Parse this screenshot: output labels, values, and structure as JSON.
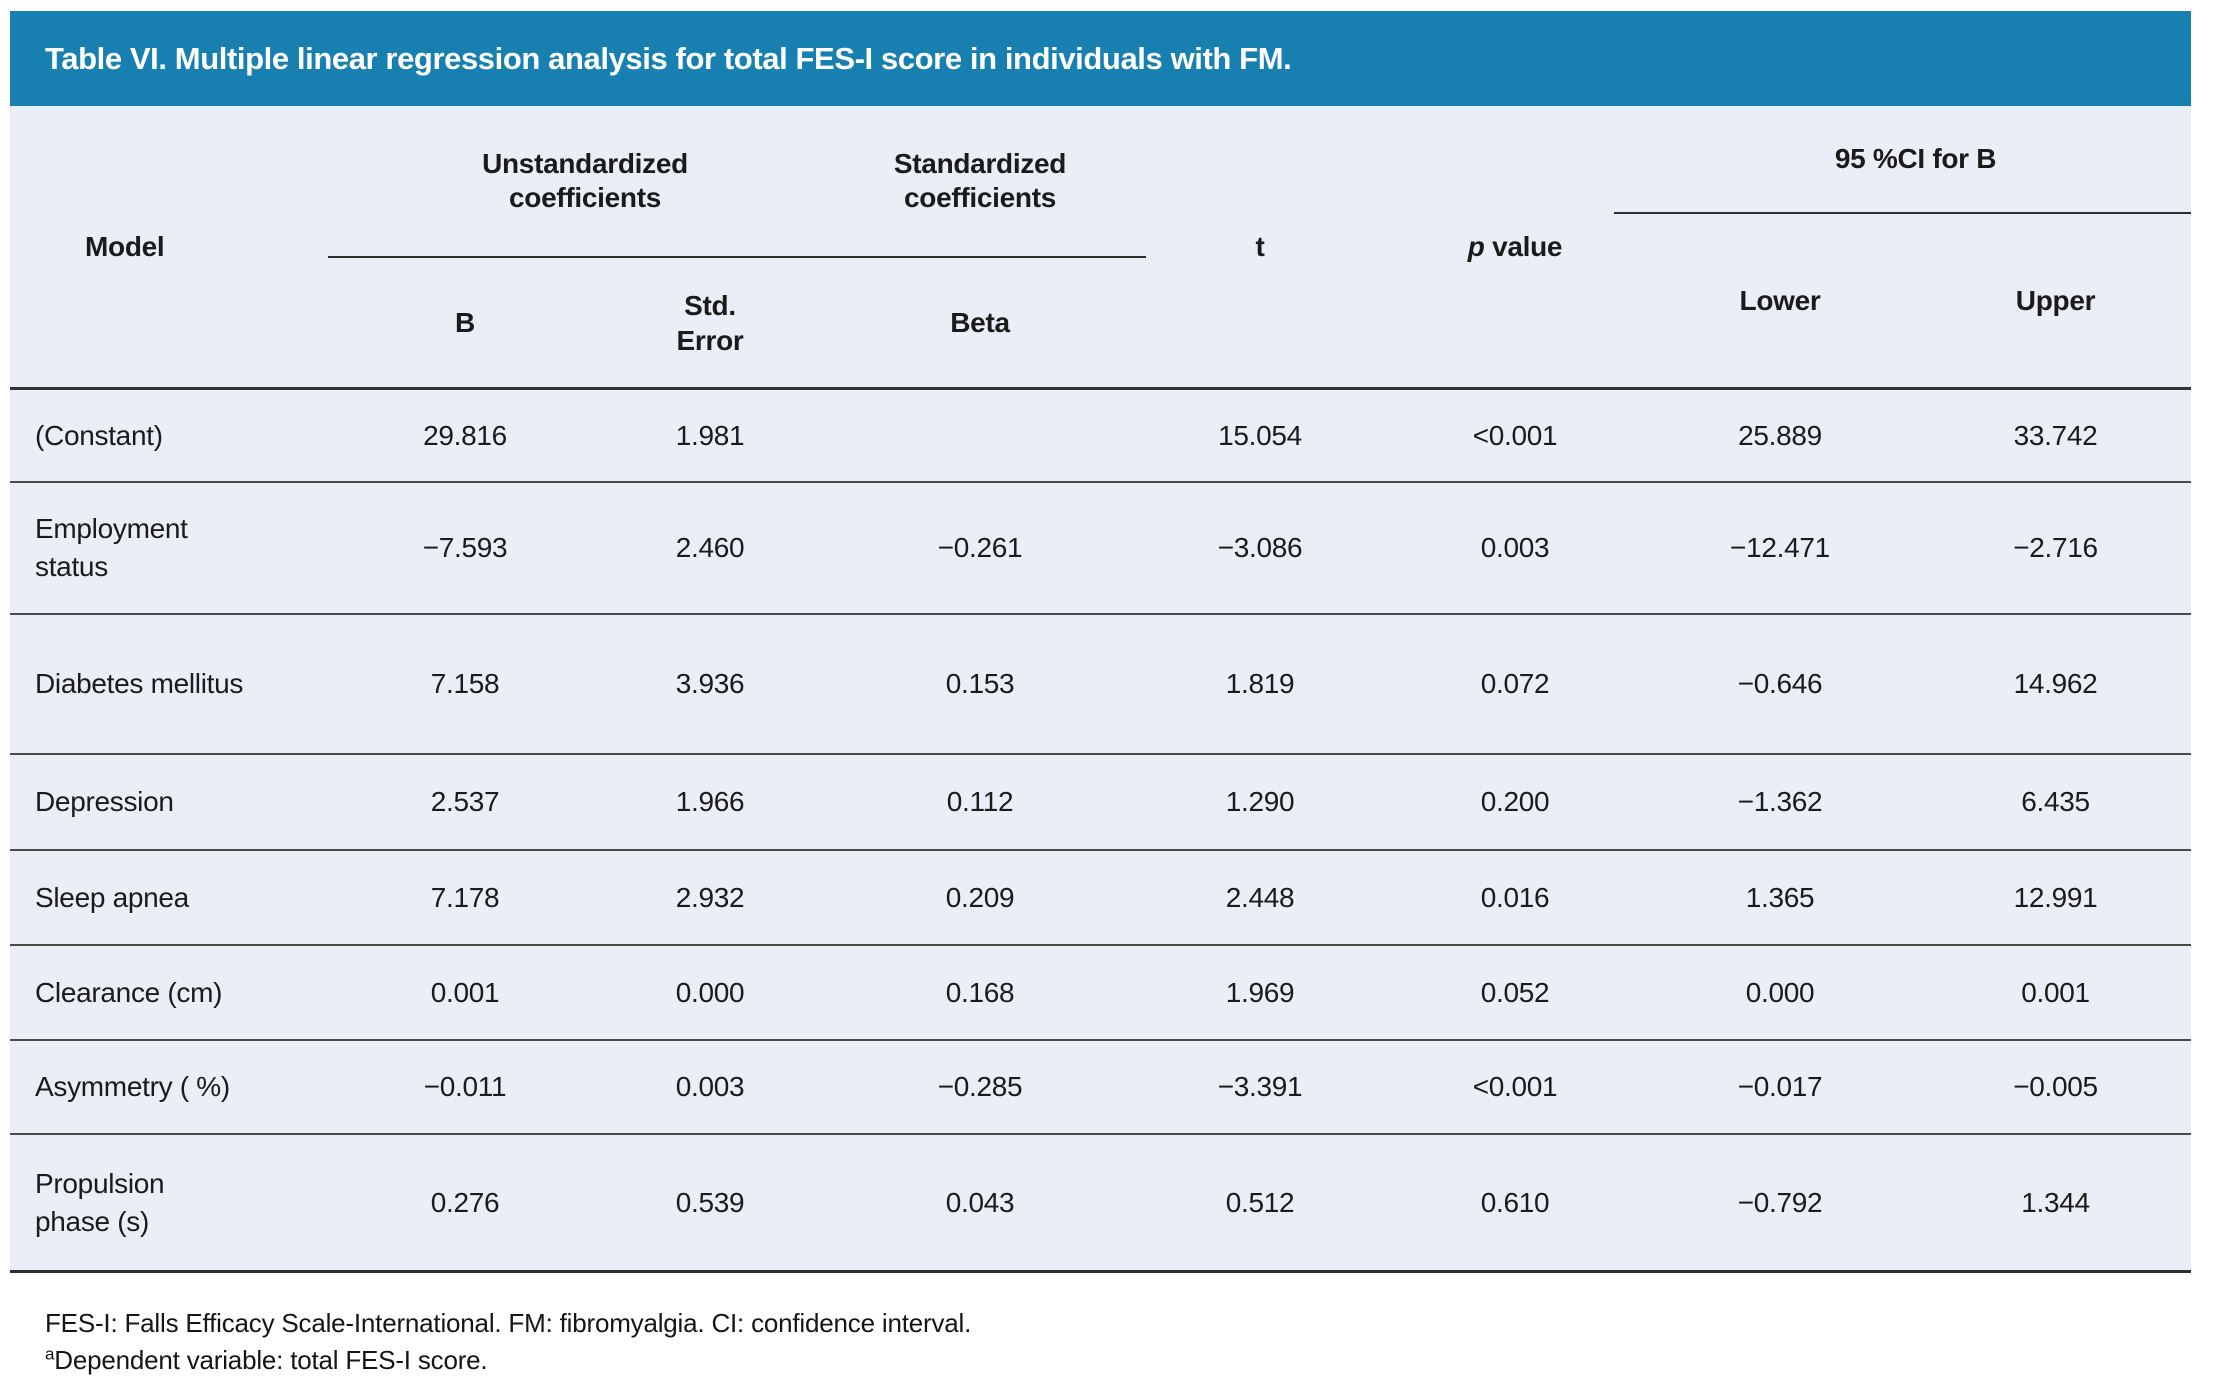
{
  "title": "Table VI. Multiple linear regression analysis for total FES-I score in individuals with FM.",
  "colors": {
    "header_bar": "#1780B1",
    "table_background": "#EAEEF6"
  },
  "header": {
    "model": "Model",
    "group_unstd": "Unstandardized coefficients",
    "group_std": "Standardized coefficients",
    "t": "t",
    "p_italic": "p",
    "p_rest": "value",
    "group_ci": "95 %CI for B",
    "sub_b": "B",
    "sub_se": "Std. Error",
    "sub_beta": "Beta",
    "sub_lower": "Lower",
    "sub_upper": "Upper"
  },
  "rows": [
    {
      "model": "(Constant)",
      "b": "29.816",
      "se": "1.981",
      "beta": "",
      "t": "15.054",
      "p": "<0.001",
      "lower": "25.889",
      "upper": "33.742"
    },
    {
      "model": "Employment status",
      "b": "−7.593",
      "se": "2.460",
      "beta": "−0.261",
      "t": "−3.086",
      "p": "0.003",
      "lower": "−12.471",
      "upper": "−2.716"
    },
    {
      "model": "Diabetes mellitus",
      "b": "7.158",
      "se": "3.936",
      "beta": "0.153",
      "t": "1.819",
      "p": "0.072",
      "lower": "−0.646",
      "upper": "14.962"
    },
    {
      "model": "Depression",
      "b": "2.537",
      "se": "1.966",
      "beta": "0.112",
      "t": "1.290",
      "p": "0.200",
      "lower": "−1.362",
      "upper": "6.435"
    },
    {
      "model": "Sleep apnea",
      "b": "7.178",
      "se": "2.932",
      "beta": "0.209",
      "t": "2.448",
      "p": "0.016",
      "lower": "1.365",
      "upper": "12.991"
    },
    {
      "model": "Clearance (cm)",
      "b": "0.001",
      "se": "0.000",
      "beta": "0.168",
      "t": "1.969",
      "p": "0.052",
      "lower": "0.000",
      "upper": "0.001"
    },
    {
      "model": "Asymmetry ( %)",
      "b": "−0.011",
      "se": "0.003",
      "beta": "−0.285",
      "t": "−3.391",
      "p": "<0.001",
      "lower": "−0.017",
      "upper": "−0.005"
    },
    {
      "model": "Propulsion phase (s)",
      "b": "0.276",
      "se": "0.539",
      "beta": "0.043",
      "t": "0.512",
      "p": "0.610",
      "lower": "−0.792",
      "upper": "1.344"
    }
  ],
  "footnotes": {
    "abbreviations": "FES-I: Falls Efficacy Scale-International. FM: fibromyalgia. CI: confidence interval.",
    "dependent_sup": "a",
    "dependent_text": "Dependent variable: total FES-I score."
  }
}
